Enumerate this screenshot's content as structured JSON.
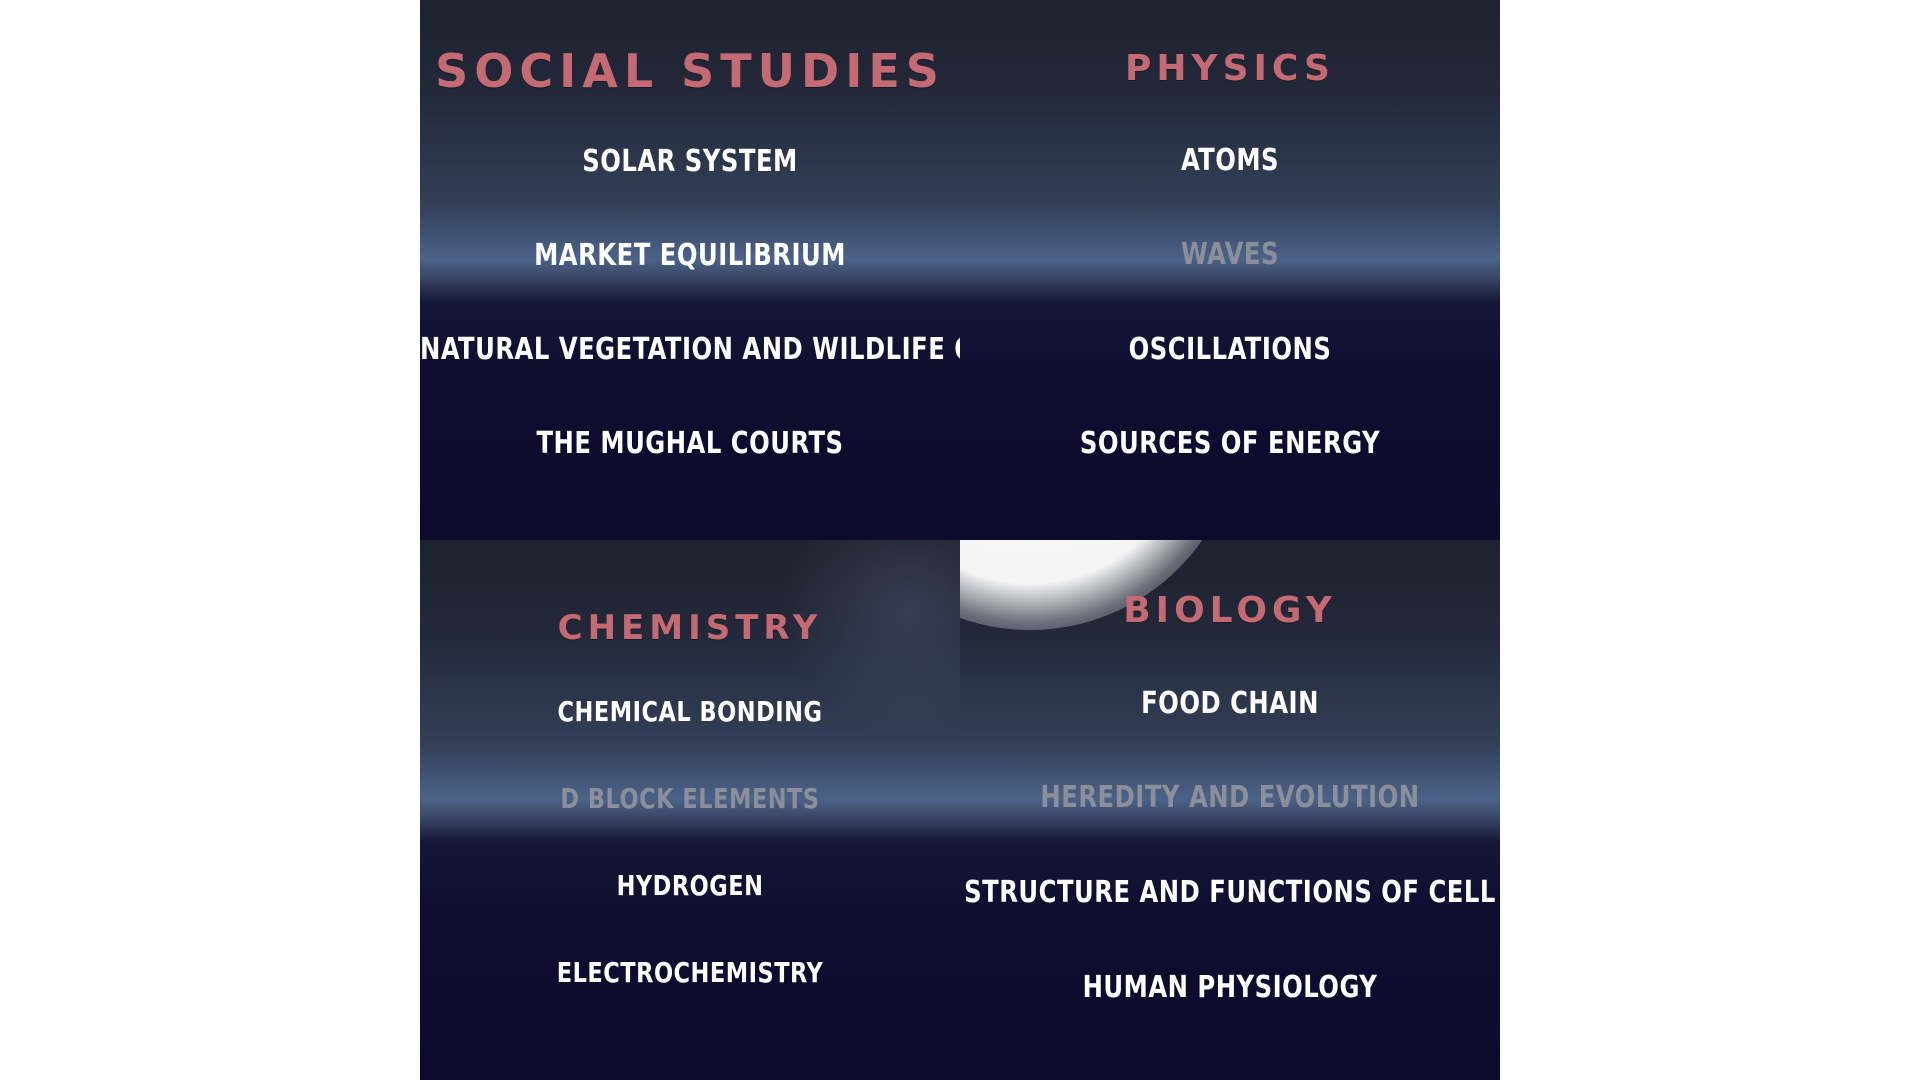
{
  "colors": {
    "title": "#c46a72",
    "item": "#ffffff",
    "item_dim": "#8b8f9a",
    "panel_dark": "#0d0b2c",
    "panel_glow": "#4b6288"
  },
  "panels": [
    {
      "title": "SOCIAL STUDIES",
      "items": [
        "SOLAR SYSTEM",
        "MARKET EQUILIBRIUM",
        "NATURAL VEGETATION AND WILDLIFE OF INDIA",
        "THE MUGHAL COURTS"
      ]
    },
    {
      "title": "PHYSICS",
      "items": [
        "ATOMS",
        "WAVES",
        "OSCILLATIONS",
        "SOURCES OF ENERGY"
      ]
    },
    {
      "title": "CHEMISTRY",
      "items": [
        "CHEMICAL BONDING",
        "D BLOCK ELEMENTS",
        "HYDROGEN",
        "ELECTROCHEMISTRY"
      ]
    },
    {
      "title": "BIOLOGY",
      "items": [
        "FOOD CHAIN",
        "HEREDITY AND EVOLUTION",
        "STRUCTURE AND FUNCTIONS OF CELL",
        "HUMAN PHYSIOLOGY"
      ]
    }
  ]
}
